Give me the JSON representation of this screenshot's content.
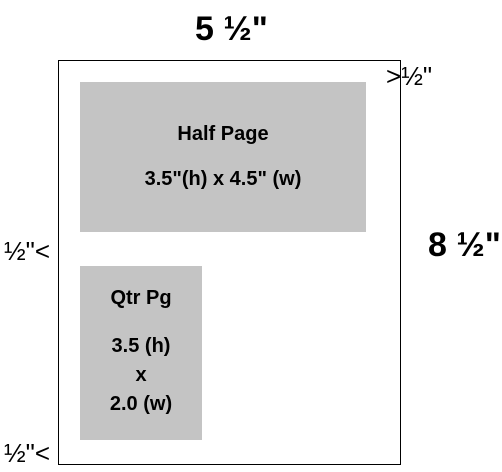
{
  "dimensions": {
    "page_width": "5 ½\"",
    "page_height": "8 ½\""
  },
  "margins": {
    "right_arrow": ">",
    "right_value": "½\"",
    "left_value": "½\"",
    "left_arrow": "<",
    "bottom_value": "½\"",
    "bottom_arrow": "<"
  },
  "ads": {
    "half_page": {
      "title": "Half Page",
      "size": "3.5\"(h) x 4.5\" (w)"
    },
    "quarter_page": {
      "title": "Qtr Pg",
      "height": "3.5 (h)",
      "times": "x",
      "width": "2.0 (w)"
    }
  },
  "colors": {
    "ad_box_fill": "#c4c4c4",
    "outline": "#000000"
  }
}
